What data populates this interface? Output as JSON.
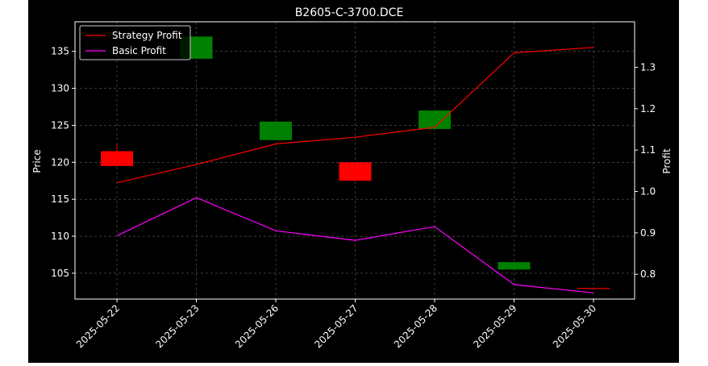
{
  "chart_data": {
    "type": "candlestick+line",
    "title": "B2605-C-3700.DCE",
    "ylabel_left": "Price",
    "ylabel_right": "Profit",
    "categories": [
      "2025-05-22",
      "2025-05-23",
      "2025-05-26",
      "2025-05-27",
      "2025-05-28",
      "2025-05-29",
      "2025-05-30"
    ],
    "ylim_left": [
      101.5,
      139.0
    ],
    "ylim_right": [
      0.74,
      1.41
    ],
    "yticks_left": [
      105,
      110,
      115,
      120,
      125,
      130,
      135
    ],
    "yticks_right": [
      0.8,
      0.9,
      1.0,
      1.1,
      1.2,
      1.3
    ],
    "grid": true,
    "legend_position": "top-left",
    "candles": [
      {
        "date": "2025-05-22",
        "open": 121.5,
        "close": 119.5,
        "high": 122.5,
        "low": 119.5,
        "color": "#ff0000"
      },
      {
        "date": "2025-05-23",
        "open": 134.0,
        "close": 137.0,
        "high": 137.0,
        "low": 134.0,
        "color": "#008000"
      },
      {
        "date": "2025-05-26",
        "open": 123.0,
        "close": 125.5,
        "high": 125.5,
        "low": 123.0,
        "color": "#008000"
      },
      {
        "date": "2025-05-27",
        "open": 120.0,
        "close": 117.5,
        "high": 120.0,
        "low": 117.5,
        "color": "#ff0000"
      },
      {
        "date": "2025-05-28",
        "open": 124.5,
        "close": 127.0,
        "high": 127.0,
        "low": 124.5,
        "color": "#008000"
      },
      {
        "date": "2025-05-29",
        "open": 105.5,
        "close": 106.5,
        "high": 106.5,
        "low": 105.5,
        "color": "#008000"
      },
      {
        "date": "2025-05-30",
        "open": 103.0,
        "close": 102.9,
        "high": 103.0,
        "low": 102.9,
        "color": "#ff0000"
      }
    ],
    "series": [
      {
        "name": "Strategy Profit",
        "color": "#ff0000",
        "axis": "right",
        "values": [
          1.021,
          1.065,
          1.115,
          1.131,
          1.155,
          1.335,
          1.348
        ]
      },
      {
        "name": "Basic Profit",
        "color": "#ff00ff",
        "axis": "right",
        "values": [
          0.893,
          0.985,
          0.905,
          0.882,
          0.915,
          0.775,
          0.755
        ]
      }
    ]
  }
}
